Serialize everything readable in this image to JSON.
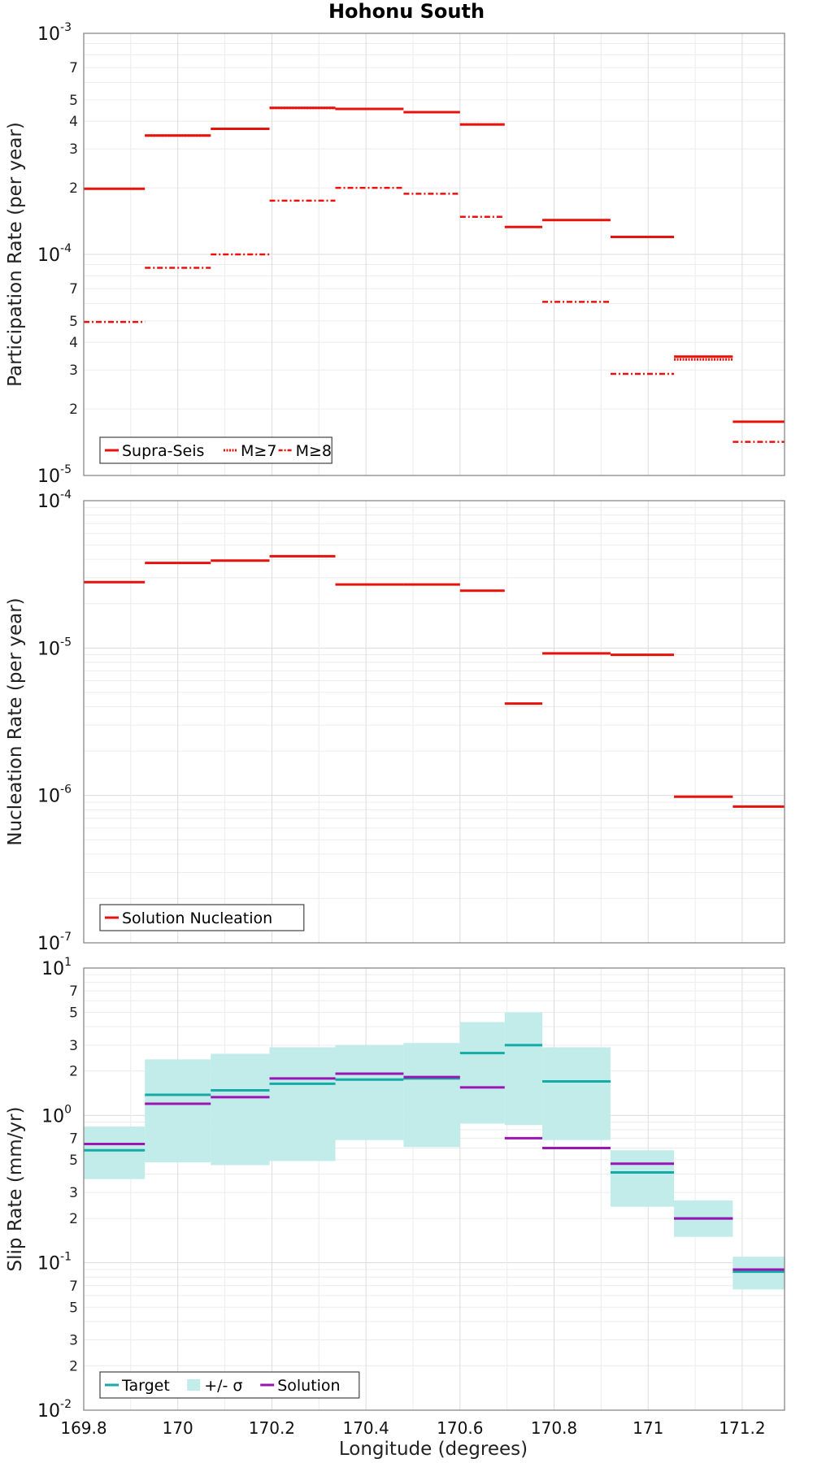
{
  "chart_data": {
    "title": "Hohonu South",
    "xlabel": "Longitude (degrees)",
    "x_ticks": [
      "169.8",
      "170",
      "170.2",
      "170.4",
      "170.6",
      "170.8",
      "171",
      "171.2"
    ],
    "x_tick_values": [
      169.8,
      170.0,
      170.2,
      170.4,
      170.6,
      170.8,
      171.0,
      171.2
    ],
    "xlim": [
      169.8,
      171.29
    ],
    "grid": true,
    "legend_placement": "bottom-left",
    "panels": [
      {
        "type": "step",
        "ylabel": "Participation Rate (per year)",
        "yscale": "log",
        "ylim": [
          1e-05,
          0.001
        ],
        "major_ticks": [
          {
            "base": "10",
            "exp": "-5",
            "value": 1e-05
          },
          {
            "base": "10",
            "exp": "-4",
            "value": 0.0001
          },
          {
            "base": "10",
            "exp": "-3",
            "value": 0.001
          }
        ],
        "minor_tick_labels": [
          "2",
          "3",
          "4",
          "5",
          "7"
        ],
        "legend": [
          "Supra-Seis",
          "M≥7",
          "M≥8"
        ],
        "series": [
          {
            "name": "Supra-Seis",
            "color": "#e8120c",
            "style": "solid",
            "segments": [
              [
                169.8,
                169.93,
                0.000198
              ],
              [
                169.93,
                170.07,
                0.000345
              ],
              [
                170.07,
                170.195,
                0.00037
              ],
              [
                170.195,
                170.335,
                0.00046
              ],
              [
                170.335,
                170.48,
                0.000455
              ],
              [
                170.48,
                170.6,
                0.00044
              ],
              [
                170.6,
                170.695,
                0.000387
              ],
              [
                170.695,
                170.775,
                0.000133
              ],
              [
                170.775,
                170.92,
                0.000143
              ],
              [
                170.92,
                171.055,
                0.00012
              ],
              [
                171.055,
                171.18,
                3.45e-05
              ],
              [
                171.18,
                171.29,
                1.75e-05
              ]
            ]
          },
          {
            "name": "M≥7",
            "color": "#e8120c",
            "style": "dotted",
            "segments": [
              [
                169.93,
                170.07,
                0.000345
              ],
              [
                170.195,
                170.335,
                0.00046
              ],
              [
                170.335,
                170.48,
                0.000455
              ],
              [
                170.48,
                170.6,
                0.00044
              ],
              [
                170.6,
                170.695,
                0.000387
              ],
              [
                170.92,
                171.055,
                0.00012
              ],
              [
                171.055,
                171.18,
                3.35e-05
              ]
            ]
          },
          {
            "name": "M≥8",
            "color": "#e8120c",
            "style": "dashdot",
            "segments": [
              [
                169.8,
                169.93,
                4.95e-05
              ],
              [
                169.93,
                170.07,
                8.7e-05
              ],
              [
                170.07,
                170.195,
                0.0001
              ],
              [
                170.195,
                170.335,
                0.000175
              ],
              [
                170.335,
                170.48,
                0.0002
              ],
              [
                170.48,
                170.6,
                0.000188
              ],
              [
                170.6,
                170.695,
                0.000148
              ],
              [
                170.775,
                170.92,
                6.1e-05
              ],
              [
                170.92,
                171.055,
                2.88e-05
              ],
              [
                171.18,
                171.29,
                1.42e-05
              ]
            ]
          }
        ]
      },
      {
        "type": "step",
        "ylabel": "Nucleation Rate (per year)",
        "yscale": "log",
        "ylim": [
          1e-07,
          0.0001
        ],
        "major_ticks": [
          {
            "base": "10",
            "exp": "-7",
            "value": 1e-07
          },
          {
            "base": "10",
            "exp": "-6",
            "value": 1e-06
          },
          {
            "base": "10",
            "exp": "-5",
            "value": 1e-05
          },
          {
            "base": "10",
            "exp": "-4",
            "value": 0.0001
          }
        ],
        "minor_tick_labels": [],
        "legend": [
          "Solution Nucleation"
        ],
        "series": [
          {
            "name": "Solution Nucleation",
            "color": "#e8120c",
            "style": "solid",
            "segments": [
              [
                169.8,
                169.93,
                2.8e-05
              ],
              [
                169.93,
                170.07,
                3.78e-05
              ],
              [
                170.07,
                170.195,
                3.92e-05
              ],
              [
                170.195,
                170.335,
                4.2e-05
              ],
              [
                170.335,
                170.48,
                2.7e-05
              ],
              [
                170.48,
                170.6,
                2.7e-05
              ],
              [
                170.6,
                170.695,
                2.45e-05
              ],
              [
                170.695,
                170.775,
                4.2e-06
              ],
              [
                170.775,
                170.92,
                9.2e-06
              ],
              [
                170.92,
                171.055,
                9e-06
              ],
              [
                171.055,
                171.18,
                9.8e-07
              ],
              [
                171.18,
                171.29,
                8.4e-07
              ]
            ]
          }
        ]
      },
      {
        "type": "step",
        "ylabel": "Slip Rate (mm/yr)",
        "yscale": "log",
        "ylim": [
          0.01,
          10
        ],
        "major_ticks": [
          {
            "base": "10",
            "exp": "-2",
            "value": 0.01
          },
          {
            "base": "10",
            "exp": "-1",
            "value": 0.1
          },
          {
            "base": "10",
            "exp": "0",
            "value": 1
          },
          {
            "base": "10",
            "exp": "1",
            "value": 10
          }
        ],
        "minor_tick_labels": [
          "2",
          "3",
          "5",
          "7"
        ],
        "legend": [
          "Target",
          "+/- σ",
          "Solution"
        ],
        "band": {
          "name": "+/- σ",
          "color": "#c2ecea",
          "segments": [
            [
              169.8,
              169.93,
              0.37,
              0.84
            ],
            [
              169.93,
              170.07,
              0.48,
              2.4
            ],
            [
              170.07,
              170.195,
              0.46,
              2.62
            ],
            [
              170.195,
              170.335,
              0.49,
              2.9
            ],
            [
              170.335,
              170.48,
              0.68,
              3.0
            ],
            [
              170.48,
              170.6,
              0.61,
              3.1
            ],
            [
              170.6,
              170.695,
              0.88,
              4.3
            ],
            [
              170.695,
              170.775,
              0.86,
              5.0
            ],
            [
              170.775,
              170.92,
              0.68,
              2.9
            ],
            [
              170.92,
              171.055,
              0.24,
              0.58
            ],
            [
              171.055,
              171.18,
              0.15,
              0.265
            ],
            [
              171.18,
              171.29,
              0.066,
              0.11
            ]
          ]
        },
        "series": [
          {
            "name": "Target",
            "color": "#14aaa6",
            "style": "solid",
            "segments": [
              [
                169.8,
                169.93,
                0.58
              ],
              [
                169.93,
                170.07,
                1.38
              ],
              [
                170.07,
                170.195,
                1.48
              ],
              [
                170.195,
                170.335,
                1.64
              ],
              [
                170.335,
                170.48,
                1.75
              ],
              [
                170.48,
                170.6,
                1.78
              ],
              [
                170.6,
                170.695,
                2.65
              ],
              [
                170.695,
                170.775,
                3.0
              ],
              [
                170.775,
                170.92,
                1.7
              ],
              [
                170.92,
                171.055,
                0.41
              ],
              [
                171.055,
                171.18,
                0.2
              ],
              [
                171.18,
                171.29,
                0.087
              ]
            ]
          },
          {
            "name": "Solution",
            "color": "#9a15b3",
            "style": "solid",
            "segments": [
              [
                169.8,
                169.93,
                0.64
              ],
              [
                169.93,
                170.07,
                1.2
              ],
              [
                170.07,
                170.195,
                1.33
              ],
              [
                170.195,
                170.335,
                1.78
              ],
              [
                170.335,
                170.48,
                1.92
              ],
              [
                170.48,
                170.6,
                1.82
              ],
              [
                170.6,
                170.695,
                1.55
              ],
              [
                170.695,
                170.775,
                0.7
              ],
              [
                170.775,
                170.92,
                0.6
              ],
              [
                170.92,
                171.055,
                0.47
              ],
              [
                171.055,
                171.18,
                0.2
              ],
              [
                171.18,
                171.29,
                0.09
              ]
            ]
          }
        ]
      }
    ]
  }
}
